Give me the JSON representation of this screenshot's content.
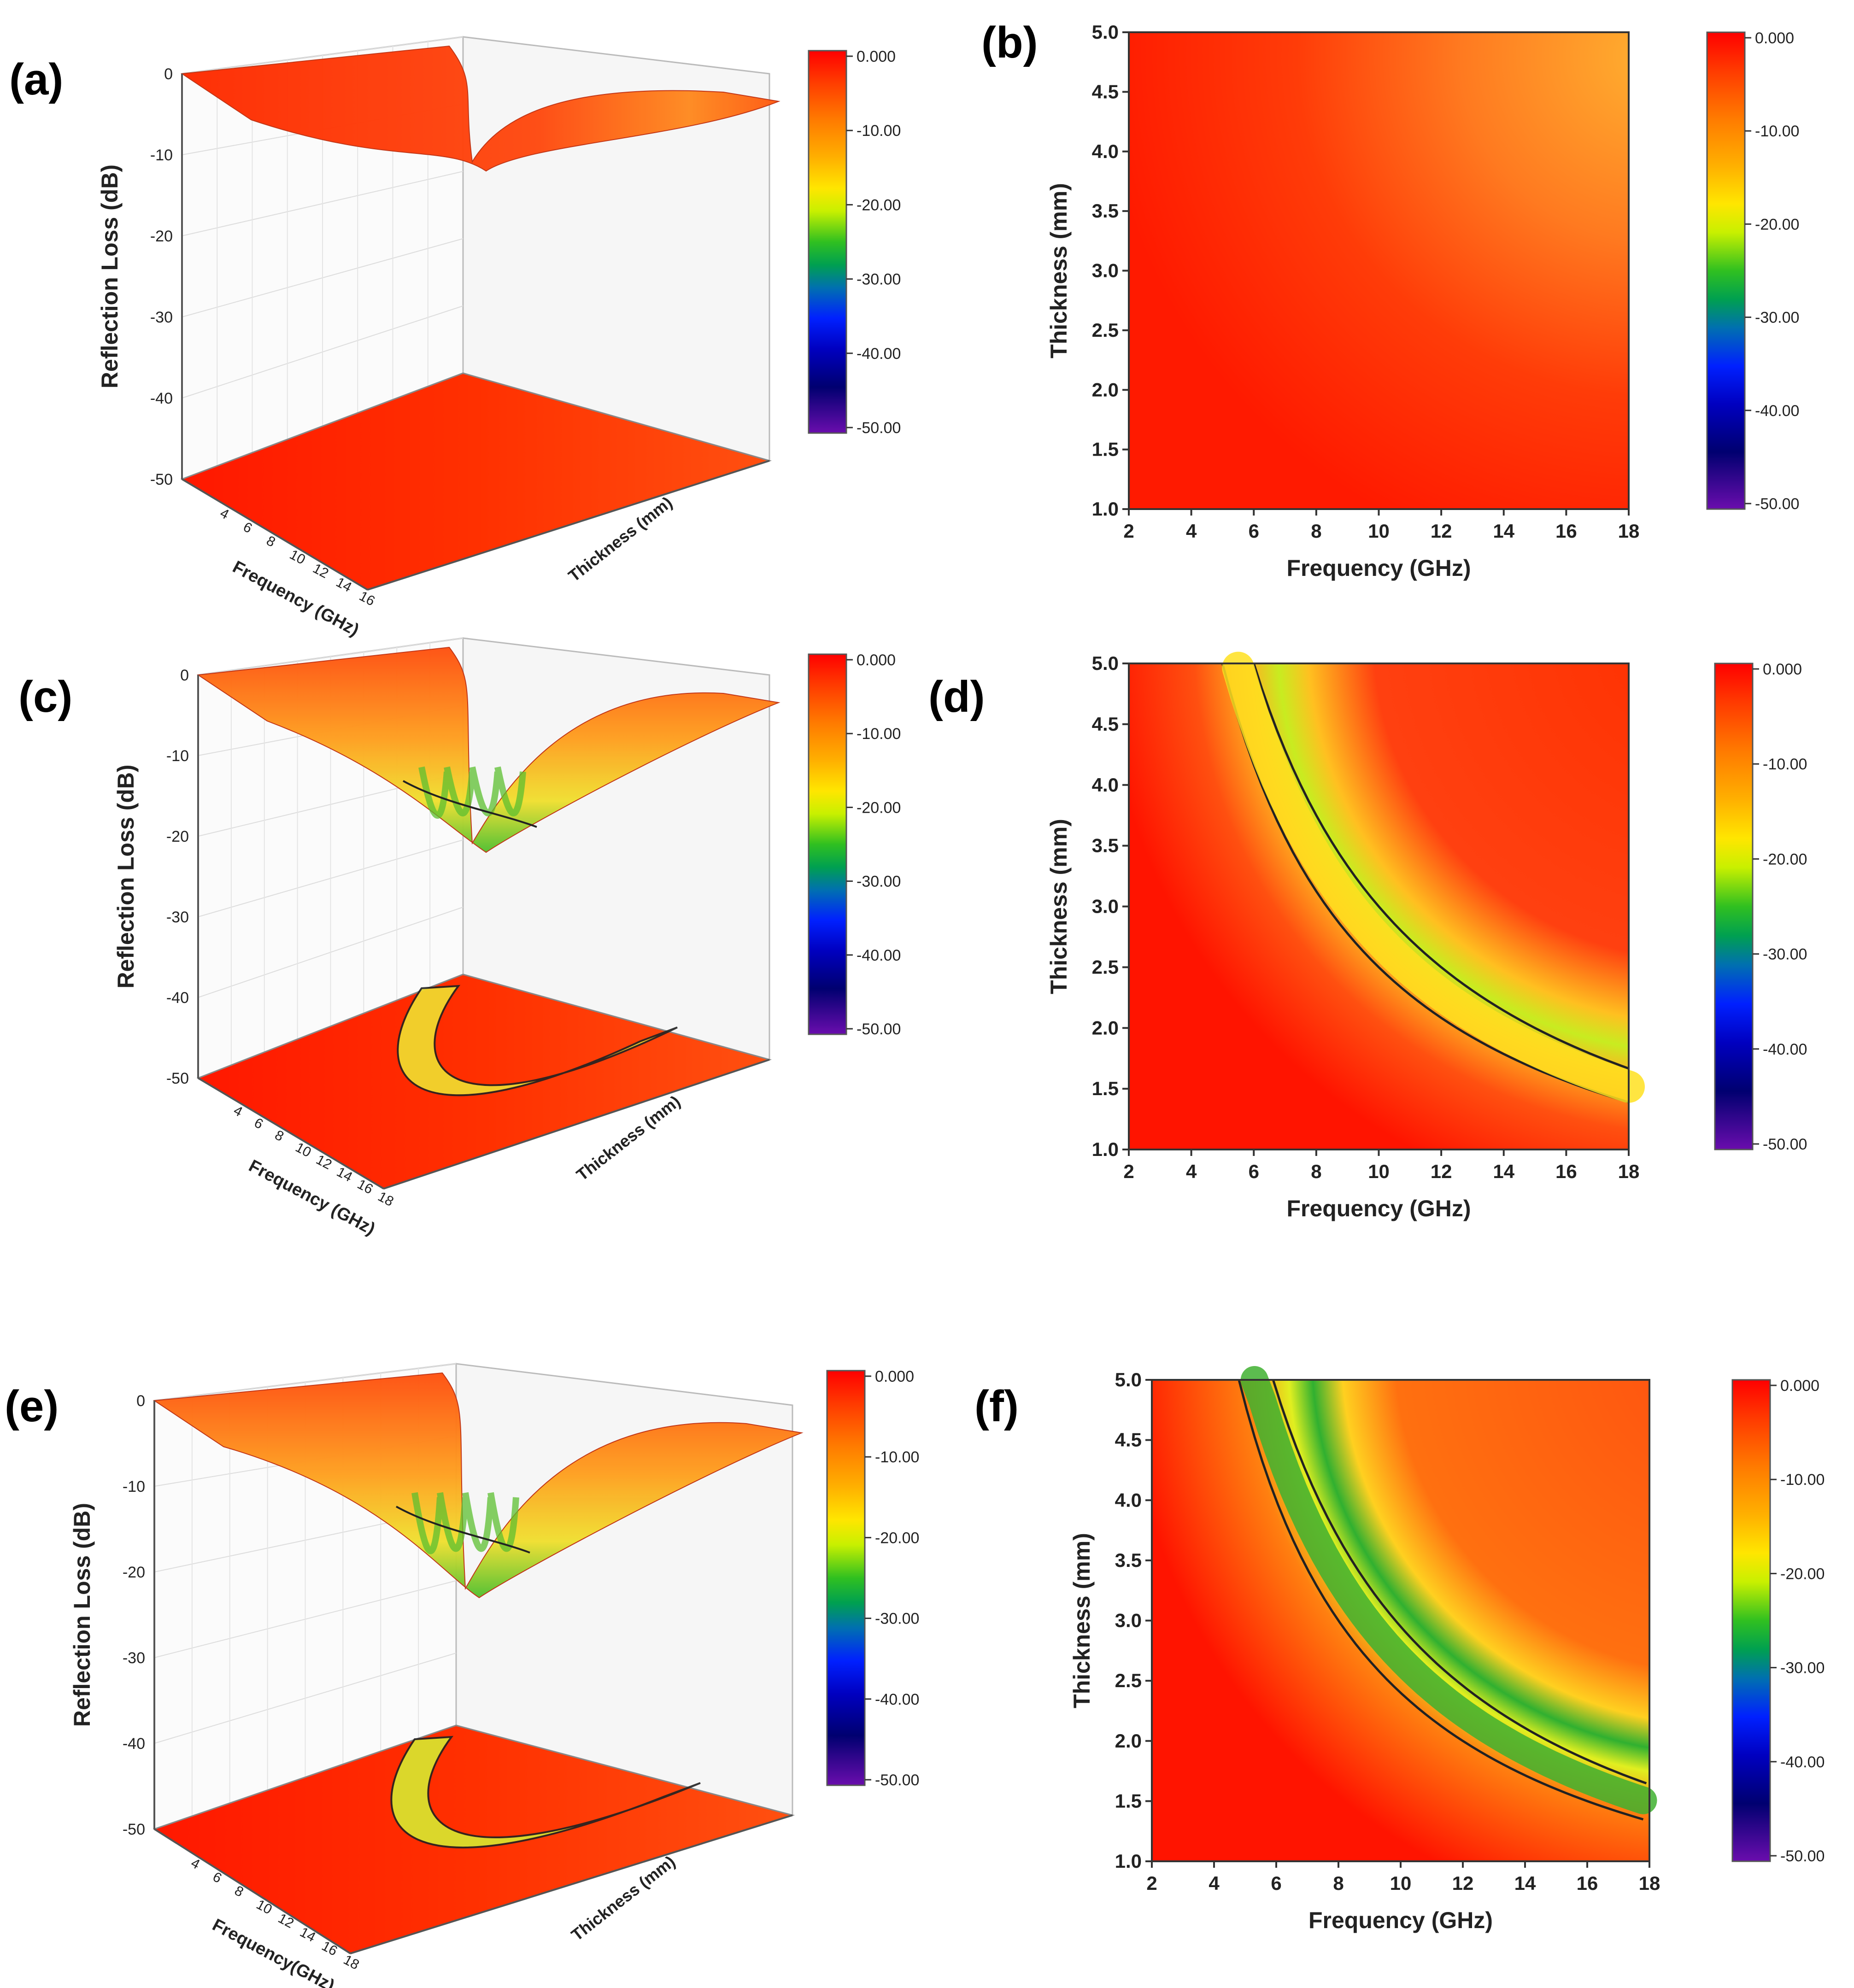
{
  "figure": {
    "description_labels": [
      "(a)",
      "(b)",
      "(c)",
      "(d)",
      "(e)",
      "(f)"
    ]
  },
  "colorbar": {
    "ticks": [
      "0.000",
      "-10.00",
      "-20.00",
      "-30.00",
      "-40.00",
      "-50.00"
    ],
    "range": [
      -50,
      0
    ]
  },
  "chart_data": [
    {
      "panel": "(a)",
      "type": "surface3d",
      "zlabel": "Reflection Loss (dB)",
      "xlabel": "Frequency (GHz)",
      "ylabel": "Thickness (mm)",
      "z_ticks": [
        "0",
        "-10",
        "-20",
        "-30",
        "-40",
        "-50"
      ],
      "x_ticks": [
        "4",
        "6",
        "8",
        "10",
        "12",
        "14",
        "16"
      ],
      "zlim": [
        -50,
        0
      ],
      "xlim": [
        2,
        18
      ],
      "ylim": [
        1,
        5
      ],
      "min_rl": -12,
      "colorbar_ticks": [
        "0.000",
        "-10.00",
        "-20.00",
        "-30.00",
        "-40.00",
        "-50.00"
      ]
    },
    {
      "panel": "(b)",
      "type": "heatmap",
      "xlabel": "Frequency (GHz)",
      "ylabel": "Thickness (mm)",
      "x_ticks": [
        "2",
        "4",
        "6",
        "8",
        "10",
        "12",
        "14",
        "16",
        "18"
      ],
      "y_ticks": [
        "5.0",
        "4.5",
        "4.0",
        "3.5",
        "3.0",
        "2.5",
        "2.0",
        "1.5",
        "1.0"
      ],
      "xlim": [
        2,
        18
      ],
      "ylim": [
        1,
        5
      ],
      "min_rl": -10,
      "colorbar_ticks": [
        "0.000",
        "-10.00",
        "-20.00",
        "-30.00",
        "-40.00",
        "-50.00"
      ]
    },
    {
      "panel": "(c)",
      "type": "surface3d",
      "zlabel": "Reflection Loss (dB)",
      "xlabel": "Frequency (GHz)",
      "ylabel": "Thickness (mm)",
      "z_ticks": [
        "0",
        "-10",
        "-20",
        "-30",
        "-40",
        "-50"
      ],
      "x_ticks": [
        "4",
        "6",
        "8",
        "10",
        "12",
        "14",
        "16",
        "18"
      ],
      "zlim": [
        -50,
        0
      ],
      "xlim": [
        2,
        18
      ],
      "ylim": [
        1,
        5
      ],
      "min_rl": -22,
      "colorbar_ticks": [
        "0.000",
        "-10.00",
        "-20.00",
        "-30.00",
        "-40.00",
        "-50.00"
      ]
    },
    {
      "panel": "(d)",
      "type": "heatmap",
      "xlabel": "Frequency (GHz)",
      "ylabel": "Thickness (mm)",
      "x_ticks": [
        "2",
        "4",
        "6",
        "8",
        "10",
        "12",
        "14",
        "16",
        "18"
      ],
      "y_ticks": [
        "5.0",
        "4.5",
        "4.0",
        "3.5",
        "3.0",
        "2.5",
        "2.0",
        "1.5",
        "1.0"
      ],
      "xlim": [
        2,
        18
      ],
      "ylim": [
        1,
        5
      ],
      "min_rl": -22,
      "colorbar_ticks": [
        "0.000",
        "-10.00",
        "-20.00",
        "-30.00",
        "-40.00",
        "-50.00"
      ]
    },
    {
      "panel": "(e)",
      "type": "surface3d",
      "zlabel": "Reflection Loss (dB)",
      "xlabel": "Frequency(GHz)",
      "ylabel": "Thickness (mm)",
      "z_ticks": [
        "0",
        "-10",
        "-20",
        "-30",
        "-40",
        "-50"
      ],
      "x_ticks": [
        "4",
        "6",
        "8",
        "10",
        "12",
        "14",
        "16",
        "18"
      ],
      "zlim": [
        -50,
        0
      ],
      "xlim": [
        2,
        18
      ],
      "ylim": [
        1,
        5
      ],
      "min_rl": -23,
      "colorbar_ticks": [
        "0.000",
        "-10.00",
        "-20.00",
        "-30.00",
        "-40.00",
        "-50.00"
      ]
    },
    {
      "panel": "(f)",
      "type": "heatmap",
      "xlabel": "Frequency (GHz)",
      "ylabel": "Thickness (mm)",
      "x_ticks": [
        "2",
        "4",
        "6",
        "8",
        "10",
        "12",
        "14",
        "16",
        "18"
      ],
      "y_ticks": [
        "5.0",
        "4.5",
        "4.0",
        "3.5",
        "3.0",
        "2.5",
        "2.0",
        "1.5",
        "1.0"
      ],
      "xlim": [
        2,
        18
      ],
      "ylim": [
        1,
        5
      ],
      "min_rl": -26,
      "colorbar_ticks": [
        "0.000",
        "-10.00",
        "-20.00",
        "-30.00",
        "-40.00",
        "-50.00"
      ]
    }
  ]
}
